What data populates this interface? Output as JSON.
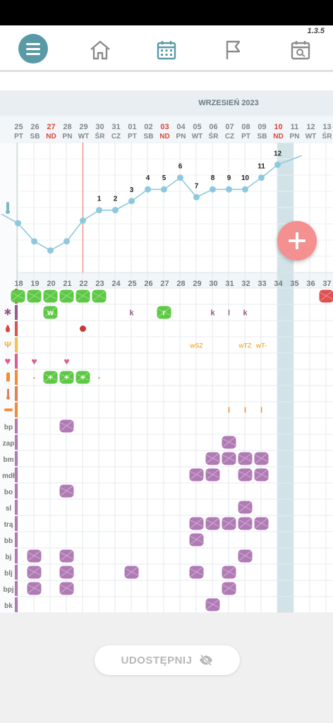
{
  "version": "1.3.5",
  "nav": {
    "menu": "menu-icon",
    "icons": [
      "home-icon",
      "calendar-icon",
      "flag-icon",
      "calendar-search-icon"
    ]
  },
  "month_label": "WRZESIEŃ 2023",
  "days": [
    {
      "num": "25",
      "dow": "PT",
      "red": false
    },
    {
      "num": "26",
      "dow": "SB",
      "red": false
    },
    {
      "num": "27",
      "dow": "ND",
      "red": true
    },
    {
      "num": "28",
      "dow": "PN",
      "red": false
    },
    {
      "num": "29",
      "dow": "WT",
      "red": false
    },
    {
      "num": "30",
      "dow": "ŚR",
      "red": false
    },
    {
      "num": "31",
      "dow": "CZ",
      "red": false
    },
    {
      "num": "01",
      "dow": "PT",
      "red": false
    },
    {
      "num": "02",
      "dow": "SB",
      "red": false
    },
    {
      "num": "03",
      "dow": "ND",
      "red": true
    },
    {
      "num": "04",
      "dow": "PN",
      "red": false
    },
    {
      "num": "05",
      "dow": "WT",
      "red": false
    },
    {
      "num": "06",
      "dow": "ŚR",
      "red": false
    },
    {
      "num": "07",
      "dow": "CZ",
      "red": false
    },
    {
      "num": "08",
      "dow": "PT",
      "red": false
    },
    {
      "num": "09",
      "dow": "SB",
      "red": false
    },
    {
      "num": "10",
      "dow": "ND",
      "red": true
    },
    {
      "num": "11",
      "dow": "PN",
      "red": false
    },
    {
      "num": "12",
      "dow": "WT",
      "red": false
    },
    {
      "num": "13",
      "dow": "ŚR",
      "red": false
    }
  ],
  "cycle_days": [
    "18",
    "19",
    "20",
    "21",
    "22",
    "23",
    "24",
    "25",
    "26",
    "27",
    "28",
    "29",
    "30",
    "31",
    "32",
    "33",
    "34",
    "35",
    "36",
    "37"
  ],
  "temp_chart": {
    "point_levels": [
      0.62,
      0.76,
      0.83,
      0.76,
      0.6,
      0.52,
      0.52,
      0.45,
      0.36,
      0.36,
      0.27,
      0.42,
      0.36,
      0.36,
      0.36,
      0.27,
      0.17
    ],
    "point_labels": [
      "",
      "",
      "",
      "",
      "",
      "1",
      "2",
      "3",
      "4",
      "5",
      "6",
      "7",
      "8",
      "9",
      "10",
      "11",
      "12"
    ]
  },
  "row_labels": [
    "",
    "",
    "",
    "",
    "",
    "",
    "",
    "",
    "bp",
    "zap",
    "bm",
    "mdł",
    "bo",
    "sl",
    "trą",
    "bb",
    "bj",
    "blj",
    "bpj",
    "bk"
  ],
  "row_icons": [
    "",
    "sperm-icon",
    "drop-icon",
    "cervix-icon",
    "heart-icon",
    "test-icon",
    "thermometer-icon",
    "pill-icon"
  ],
  "row_colors": [
    "#e05050",
    "#9a5a8a",
    "#d9534f",
    "#f2c14e",
    "#e05b8f",
    "#f28c38",
    "#e0805e",
    "#f28c38",
    "#b07ab5",
    "#b07ab5",
    "#b07ab5",
    "#b07ab5",
    "#b07ab5",
    "#b07ab5",
    "#b07ab5",
    "#b07ab5",
    "#b07ab5",
    "#b07ab5",
    "#b07ab5",
    "#b07ab5"
  ],
  "green_cells": [
    [
      0,
      0
    ],
    [
      0,
      1
    ],
    [
      0,
      2
    ],
    [
      0,
      3
    ],
    [
      0,
      4
    ],
    [
      0,
      5
    ]
  ],
  "red_cells": [
    [
      0,
      19
    ]
  ],
  "mucus_labels": [
    {
      "row": 1,
      "col": 2,
      "text": "w",
      "blob": true
    },
    {
      "row": 1,
      "col": 7,
      "text": "k",
      "blob": false
    },
    {
      "row": 1,
      "col": 9,
      "text": "r",
      "blob": true
    },
    {
      "row": 1,
      "col": 12,
      "text": "k",
      "blob": false
    },
    {
      "row": 1,
      "col": 13,
      "text": "l",
      "blob": false
    },
    {
      "row": 1,
      "col": 14,
      "text": "k",
      "blob": false
    }
  ],
  "dots": [
    {
      "row": 2,
      "col": 4
    }
  ],
  "cervix_labels": [
    {
      "col": 11,
      "text": "wSZ"
    },
    {
      "col": 14,
      "text": "wTZ"
    },
    {
      "col": 15,
      "text": "wT-"
    }
  ],
  "hearts": [
    {
      "row": 4,
      "col": 1
    },
    {
      "row": 4,
      "col": 3
    }
  ],
  "tests": [
    {
      "col": 1,
      "text": "-",
      "blob": false
    },
    {
      "col": 2,
      "text": "+",
      "blob": true
    },
    {
      "col": 3,
      "text": "+",
      "blob": true
    },
    {
      "col": 4,
      "text": "+",
      "blob": true
    },
    {
      "col": 5,
      "text": "-",
      "blob": false
    }
  ],
  "pill_marks": [
    {
      "col": 13,
      "text": "l"
    },
    {
      "col": 14,
      "text": "l"
    },
    {
      "col": 15,
      "text": "l"
    }
  ],
  "purple_cells": [
    [
      8,
      3
    ],
    [
      9,
      13
    ],
    [
      10,
      12
    ],
    [
      10,
      13
    ],
    [
      10,
      14
    ],
    [
      10,
      15
    ],
    [
      11,
      11
    ],
    [
      11,
      12
    ],
    [
      11,
      14
    ],
    [
      11,
      15
    ],
    [
      12,
      3
    ],
    [
      13,
      14
    ],
    [
      14,
      11
    ],
    [
      14,
      12
    ],
    [
      14,
      13
    ],
    [
      14,
      14
    ],
    [
      14,
      15
    ],
    [
      15,
      11
    ],
    [
      16,
      1
    ],
    [
      16,
      3
    ],
    [
      16,
      14
    ],
    [
      17,
      1
    ],
    [
      17,
      3
    ],
    [
      17,
      7
    ],
    [
      17,
      11
    ],
    [
      17,
      13
    ],
    [
      18,
      1
    ],
    [
      18,
      3
    ],
    [
      18,
      13
    ],
    [
      19,
      12
    ]
  ],
  "share_button": "UDOSTĘPNIJ",
  "share_icon": "eye-off-icon"
}
